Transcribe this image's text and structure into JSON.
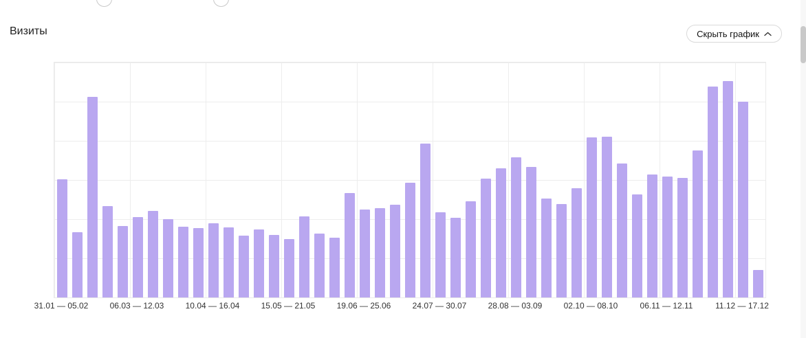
{
  "header": {
    "title": "Визиты",
    "hide_chart_button": {
      "label": "Скрыть график",
      "icon": "chevron-up"
    }
  },
  "chart_data": {
    "type": "bar",
    "title": "Визиты",
    "bar_color": "#b9a7f0",
    "grid": true,
    "legend_position": "none",
    "y_axis_visible": false,
    "ylim": [
      0,
      342
    ],
    "x_tick_labels": [
      "31.01 — 05.02",
      "06.03 — 12.03",
      "10.04 — 16.04",
      "15.05 — 21.05",
      "19.06 — 25.06",
      "24.07 — 30.07",
      "28.08 — 03.09",
      "02.10 — 08.10",
      "06.11 — 12.11",
      "11.12 — 17.12"
    ],
    "x_tick_bar_indices": [
      0,
      5,
      10,
      15,
      20,
      25,
      30,
      35,
      40,
      45
    ],
    "values": [
      172,
      95,
      292,
      133,
      104,
      117,
      126,
      114,
      103,
      101,
      108,
      102,
      90,
      99,
      91,
      85,
      118,
      93,
      87,
      152,
      128,
      130,
      135,
      167,
      224,
      124,
      116,
      140,
      173,
      188,
      204,
      190,
      144,
      136,
      159,
      233,
      234,
      195,
      150,
      179,
      176,
      174,
      214,
      307,
      315,
      285,
      40
    ]
  }
}
